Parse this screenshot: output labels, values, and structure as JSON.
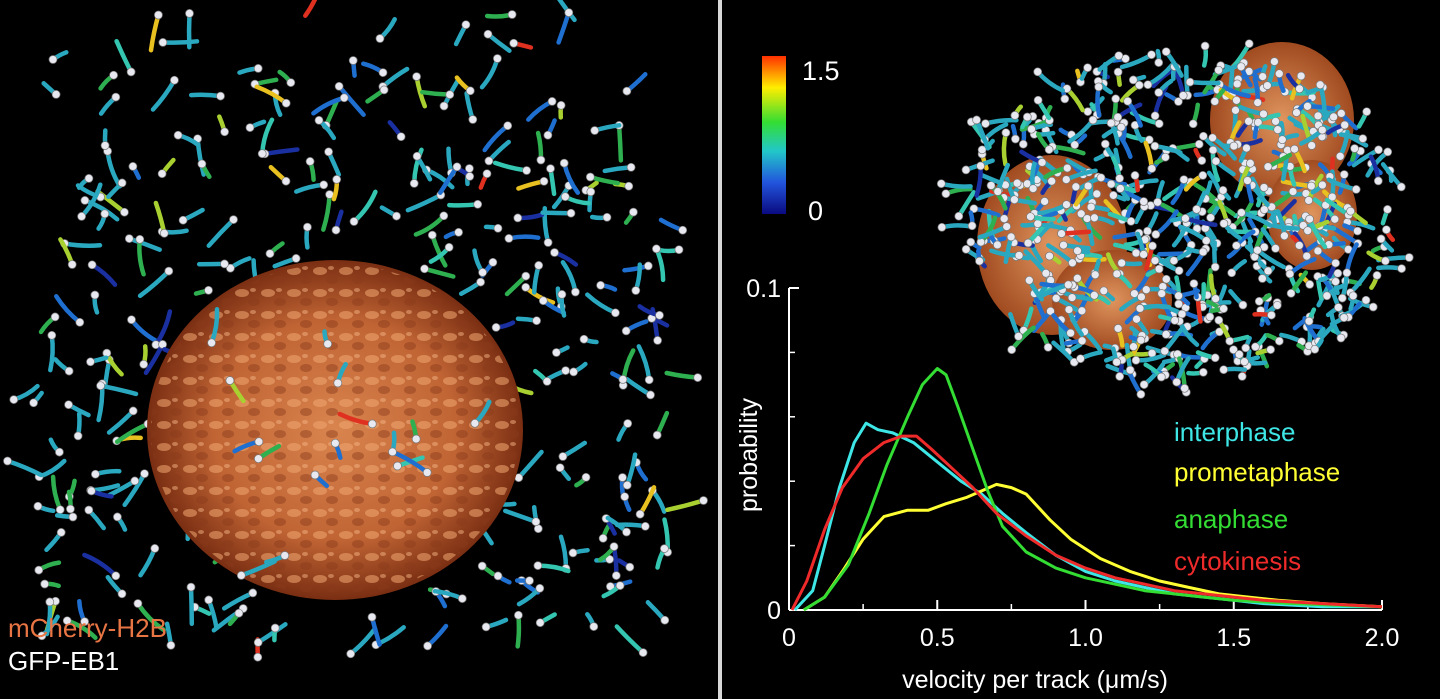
{
  "left_panel": {
    "labels": [
      {
        "text": "mCherry-H2B",
        "color": "#e87543"
      },
      {
        "text": "GFP-EB1",
        "color": "#ffffff"
      }
    ]
  },
  "colorbar": {
    "max_label": "1.5",
    "min_label": "0",
    "colors": [
      "#ff3000",
      "#ffee00",
      "#33dd33",
      "#22c8c8",
      "#2255dd",
      "#0a0a80"
    ]
  },
  "phase_legend": [
    {
      "label": "interphase",
      "color": "#3ee6e6"
    },
    {
      "label": "prometaphase",
      "color": "#ffff33"
    },
    {
      "label": "anaphase",
      "color": "#33dd33"
    },
    {
      "label": "cytokinesis",
      "color": "#ee2a2a"
    }
  ],
  "chart_data": {
    "type": "line",
    "xlabel": "velocity per track (μm/s)",
    "ylabel": "probability",
    "xlim": [
      0,
      2.0
    ],
    "ylim": [
      0,
      0.1
    ],
    "x_ticks": [
      "0",
      "0.5",
      "1.0",
      "1.5",
      "2.0"
    ],
    "y_ticks": [
      "0",
      "0.1"
    ],
    "series": [
      {
        "name": "interphase",
        "color": "#3ee6e6",
        "points": [
          [
            0.02,
            0
          ],
          [
            0.08,
            0.006
          ],
          [
            0.12,
            0.02
          ],
          [
            0.17,
            0.038
          ],
          [
            0.22,
            0.052
          ],
          [
            0.26,
            0.058
          ],
          [
            0.3,
            0.056
          ],
          [
            0.35,
            0.055
          ],
          [
            0.42,
            0.052
          ],
          [
            0.5,
            0.046
          ],
          [
            0.58,
            0.04
          ],
          [
            0.65,
            0.036
          ],
          [
            0.72,
            0.03
          ],
          [
            0.8,
            0.024
          ],
          [
            0.9,
            0.017
          ],
          [
            1.0,
            0.012
          ],
          [
            1.1,
            0.009
          ],
          [
            1.2,
            0.007
          ],
          [
            1.3,
            0.005
          ],
          [
            1.4,
            0.004
          ],
          [
            1.5,
            0.003
          ],
          [
            1.6,
            0.002
          ],
          [
            1.8,
            0.001
          ],
          [
            2.0,
            0.001
          ]
        ]
      },
      {
        "name": "prometaphase",
        "color": "#ffff33",
        "points": [
          [
            0.05,
            0
          ],
          [
            0.12,
            0.004
          ],
          [
            0.18,
            0.012
          ],
          [
            0.25,
            0.022
          ],
          [
            0.32,
            0.029
          ],
          [
            0.4,
            0.031
          ],
          [
            0.47,
            0.031
          ],
          [
            0.53,
            0.033
          ],
          [
            0.6,
            0.035
          ],
          [
            0.65,
            0.037
          ],
          [
            0.7,
            0.039
          ],
          [
            0.75,
            0.038
          ],
          [
            0.8,
            0.036
          ],
          [
            0.88,
            0.028
          ],
          [
            0.95,
            0.022
          ],
          [
            1.05,
            0.016
          ],
          [
            1.15,
            0.012
          ],
          [
            1.25,
            0.009
          ],
          [
            1.35,
            0.007
          ],
          [
            1.45,
            0.005
          ],
          [
            1.55,
            0.004
          ],
          [
            1.65,
            0.003
          ],
          [
            1.8,
            0.002
          ],
          [
            2.0,
            0.001
          ]
        ]
      },
      {
        "name": "anaphase",
        "color": "#33dd33",
        "points": [
          [
            0.05,
            0
          ],
          [
            0.12,
            0.004
          ],
          [
            0.2,
            0.014
          ],
          [
            0.27,
            0.03
          ],
          [
            0.33,
            0.045
          ],
          [
            0.4,
            0.06
          ],
          [
            0.45,
            0.07
          ],
          [
            0.5,
            0.075
          ],
          [
            0.53,
            0.073
          ],
          [
            0.57,
            0.063
          ],
          [
            0.62,
            0.05
          ],
          [
            0.67,
            0.037
          ],
          [
            0.72,
            0.026
          ],
          [
            0.8,
            0.018
          ],
          [
            0.9,
            0.013
          ],
          [
            1.0,
            0.01
          ],
          [
            1.1,
            0.008
          ],
          [
            1.2,
            0.006
          ],
          [
            1.3,
            0.005
          ],
          [
            1.4,
            0.004
          ],
          [
            1.5,
            0.003
          ],
          [
            1.7,
            0.002
          ],
          [
            2.0,
            0.001
          ]
        ]
      },
      {
        "name": "cytokinesis",
        "color": "#ee2a2a",
        "points": [
          [
            0.01,
            0
          ],
          [
            0.06,
            0.009
          ],
          [
            0.12,
            0.025
          ],
          [
            0.18,
            0.038
          ],
          [
            0.25,
            0.047
          ],
          [
            0.32,
            0.052
          ],
          [
            0.38,
            0.054
          ],
          [
            0.43,
            0.054
          ],
          [
            0.48,
            0.05
          ],
          [
            0.55,
            0.044
          ],
          [
            0.62,
            0.038
          ],
          [
            0.7,
            0.03
          ],
          [
            0.8,
            0.023
          ],
          [
            0.9,
            0.017
          ],
          [
            1.0,
            0.013
          ],
          [
            1.1,
            0.01
          ],
          [
            1.2,
            0.008
          ],
          [
            1.3,
            0.006
          ],
          [
            1.4,
            0.005
          ],
          [
            1.5,
            0.004
          ],
          [
            1.6,
            0.003
          ],
          [
            1.8,
            0.002
          ],
          [
            2.0,
            0.001
          ]
        ]
      }
    ]
  }
}
